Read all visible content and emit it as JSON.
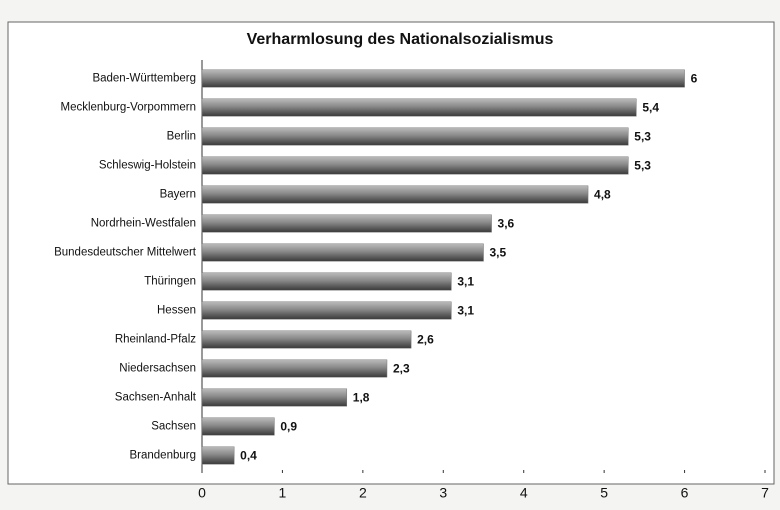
{
  "chart_data": {
    "type": "bar",
    "orientation": "horizontal",
    "title": "Verharmlosung des Nationalsozialismus",
    "categories": [
      "Baden-Württemberg",
      "Mecklenburg-Vorpommern",
      "Berlin",
      "Schleswig-Holstein",
      "Bayern",
      "Nordrhein-Westfalen",
      "Bundesdeutscher Mittelwert",
      "Thüringen",
      "Hessen",
      "Rheinland-Pfalz",
      "Niedersachsen",
      "Sachsen-Anhalt",
      "Sachsen",
      "Brandenburg"
    ],
    "values": [
      6,
      5.4,
      5.3,
      5.3,
      4.8,
      3.6,
      3.5,
      3.1,
      3.1,
      2.6,
      2.3,
      1.8,
      0.9,
      0.4
    ],
    "value_labels": [
      "6",
      "5,4",
      "5,3",
      "5,3",
      "4,8",
      "3,6",
      "3,5",
      "3,1",
      "3,1",
      "2,6",
      "2,3",
      "1,8",
      "0,9",
      "0,4"
    ],
    "color": "#777777",
    "xlim": [
      0,
      7
    ],
    "xticks": [
      0,
      1,
      2,
      3,
      4,
      5,
      6,
      7
    ],
    "grid": false
  }
}
